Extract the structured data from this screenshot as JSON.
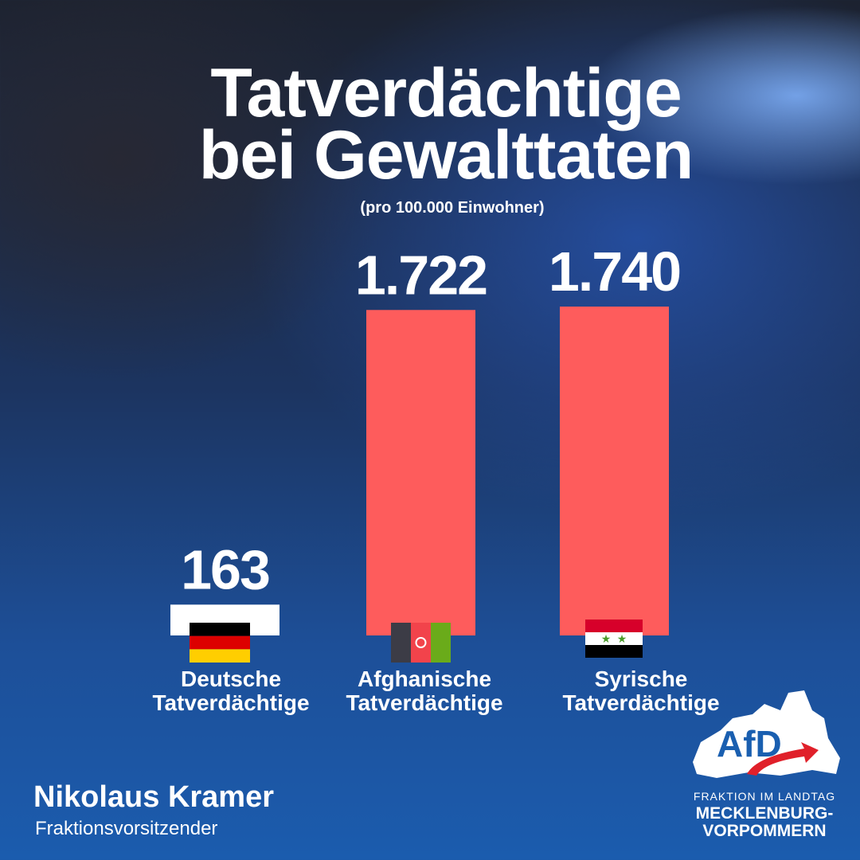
{
  "chart_data": {
    "type": "bar",
    "title": "Tatverdächtige bei Gewalttaten",
    "title_lines": [
      "Tatverdächtige",
      "bei Gewalttaten"
    ],
    "subtitle": "(pro 100.000 Einwohner)",
    "categories": [
      "Deutsche Tatverdächtige",
      "Afghanische Tatverdächtige",
      "Syrische Tatverdächtige"
    ],
    "category_lines": [
      [
        "Deutsche",
        "Tatverdächtige"
      ],
      [
        "Afghanische",
        "Tatverdächtige"
      ],
      [
        "Syrische",
        "Tatverdächtige"
      ]
    ],
    "values": [
      163,
      1722,
      1740
    ],
    "value_labels": [
      "163",
      "1.722",
      "1.740"
    ],
    "bar_colors": [
      "#ffffff",
      "#fe5c5c",
      "#fe5c5c"
    ],
    "flags": [
      "germany-flag",
      "afghanistan-flag",
      "syria-flag"
    ],
    "ylim": [
      0,
      1740
    ],
    "grid": false
  },
  "footer": {
    "name": "Nikolaus Kramer",
    "role": "Fraktionsvorsitzender"
  },
  "logo": {
    "brand": "AfD",
    "line1": "FRAKTION IM LANDTAG",
    "line2": "MECKLENBURG-",
    "line3": "VORPOMMERN"
  }
}
